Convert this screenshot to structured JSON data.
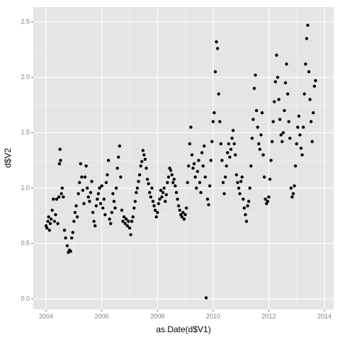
{
  "chart_data": {
    "type": "scatter",
    "xlabel": "as.Date(d$V1)",
    "ylabel": "d$V2",
    "xlim": [
      2003.54,
      2014.33
    ],
    "ylim": [
      -0.096,
      2.634
    ],
    "xticks": [
      2004,
      2006,
      2008,
      2010,
      2012,
      2014
    ],
    "yticks": [
      {
        "value": 0,
        "label": "0.0"
      },
      0.5,
      {
        "value": 1,
        "label": "1.0"
      },
      1.5,
      {
        "value": 2,
        "label": "2.0"
      },
      2.5
    ],
    "grid": true,
    "color": "#000000",
    "x": [
      2004.0,
      2004.03,
      2004.06,
      2004.09,
      2004.12,
      2004.15,
      2004.18,
      2004.22,
      2004.26,
      2004.3,
      2004.34,
      2004.38,
      2004.42,
      2004.46,
      2004.48,
      2004.5,
      2004.52,
      2004.55,
      2004.58,
      2004.62,
      2004.66,
      2004.7,
      2004.76,
      2004.8,
      2004.84,
      2004.88,
      2004.92,
      2004.96,
      2005.0,
      2005.04,
      2005.08,
      2005.12,
      2005.16,
      2005.2,
      2005.24,
      2005.28,
      2005.32,
      2005.36,
      2005.4,
      2005.44,
      2005.48,
      2005.52,
      2005.56,
      2005.6,
      2005.64,
      2005.68,
      2005.72,
      2005.76,
      2005.8,
      2005.84,
      2005.88,
      2005.92,
      2005.96,
      2006.0,
      2006.04,
      2006.08,
      2006.12,
      2006.16,
      2006.2,
      2006.24,
      2006.28,
      2006.32,
      2006.36,
      2006.4,
      2006.44,
      2006.48,
      2006.52,
      2006.56,
      2006.6,
      2006.64,
      2006.68,
      2006.72,
      2006.76,
      2006.8,
      2006.84,
      2006.88,
      2006.92,
      2006.96,
      2007.0,
      2007.04,
      2007.08,
      2007.12,
      2007.16,
      2007.2,
      2007.24,
      2007.28,
      2007.32,
      2007.36,
      2007.4,
      2007.44,
      2007.48,
      2007.52,
      2007.56,
      2007.6,
      2007.64,
      2007.68,
      2007.72,
      2007.76,
      2007.8,
      2007.84,
      2007.88,
      2007.92,
      2007.96,
      2008.0,
      2008.04,
      2008.08,
      2008.12,
      2008.16,
      2008.2,
      2008.24,
      2008.28,
      2008.32,
      2008.36,
      2008.4,
      2008.44,
      2008.48,
      2008.52,
      2008.56,
      2008.6,
      2008.64,
      2008.68,
      2008.72,
      2008.76,
      2008.8,
      2008.84,
      2008.88,
      2008.92,
      2008.96,
      2009.0,
      2009.04,
      2009.08,
      2009.12,
      2009.16,
      2009.2,
      2009.24,
      2009.28,
      2009.32,
      2009.36,
      2009.4,
      2009.44,
      2009.48,
      2009.52,
      2009.56,
      2009.6,
      2009.64,
      2009.68,
      2009.72,
      2009.75,
      2009.8,
      2009.84,
      2009.88,
      2009.92,
      2009.96,
      2010.0,
      2010.04,
      2010.08,
      2010.12,
      2010.16,
      2010.2,
      2010.24,
      2010.28,
      2010.32,
      2010.36,
      2010.4,
      2010.44,
      2010.48,
      2010.52,
      2010.56,
      2010.6,
      2010.64,
      2010.68,
      2010.72,
      2010.76,
      2010.8,
      2010.84,
      2010.88,
      2010.92,
      2010.96,
      2011.0,
      2011.04,
      2011.08,
      2011.12,
      2011.16,
      2011.2,
      2011.24,
      2011.28,
      2011.32,
      2011.36,
      2011.4,
      2011.44,
      2011.48,
      2011.52,
      2011.56,
      2011.6,
      2011.64,
      2011.68,
      2011.72,
      2011.76,
      2011.8,
      2011.84,
      2011.88,
      2011.92,
      2011.96,
      2012.0,
      2012.04,
      2012.08,
      2012.12,
      2012.16,
      2012.2,
      2012.24,
      2012.28,
      2012.32,
      2012.36,
      2012.4,
      2012.44,
      2012.48,
      2012.52,
      2012.56,
      2012.6,
      2012.64,
      2012.68,
      2012.72,
      2012.76,
      2012.8,
      2012.84,
      2012.88,
      2012.92,
      2012.96,
      2013.0,
      2013.04,
      2013.08,
      2013.12,
      2013.16,
      2013.2,
      2013.24,
      2013.28,
      2013.32,
      2013.36,
      2013.4,
      2013.44,
      2013.48,
      2013.52,
      2013.56,
      2013.6,
      2013.64,
      2013.68
    ],
    "values": [
      0.66,
      0.64,
      0.7,
      0.74,
      0.62,
      0.68,
      0.72,
      0.8,
      0.9,
      0.7,
      0.76,
      0.9,
      0.68,
      0.92,
      1.22,
      1.35,
      1.25,
      0.95,
      1.0,
      0.92,
      0.62,
      0.55,
      0.48,
      0.42,
      0.44,
      0.43,
      0.55,
      0.6,
      0.7,
      0.78,
      0.84,
      0.74,
      0.95,
      1.05,
      1.22,
      1.1,
      0.98,
      0.86,
      1.1,
      1.2,
      1.0,
      0.92,
      0.88,
      0.96,
      1.06,
      0.78,
      0.7,
      0.66,
      0.84,
      0.9,
      0.95,
      1.0,
      0.86,
      1.02,
      0.82,
      0.9,
      0.76,
      1.05,
      1.12,
      1.25,
      0.72,
      0.68,
      0.78,
      0.95,
      0.88,
      0.82,
      1.0,
      1.18,
      1.28,
      1.38,
      1.1,
      0.8,
      0.7,
      0.74,
      0.68,
      0.72,
      0.66,
      0.7,
      0.64,
      0.58,
      0.7,
      0.74,
      0.82,
      0.88,
      0.96,
      1.0,
      1.06,
      1.12,
      1.2,
      1.24,
      1.34,
      1.3,
      1.26,
      1.18,
      1.08,
      1.04,
      0.96,
      0.92,
      1.0,
      0.88,
      0.84,
      0.8,
      0.74,
      0.78,
      0.86,
      0.9,
      0.98,
      0.92,
      0.96,
      1.0,
      0.88,
      0.94,
      1.05,
      1.1,
      1.18,
      1.16,
      1.12,
      1.05,
      1.08,
      1.02,
      0.96,
      0.9,
      0.84,
      0.8,
      0.76,
      0.74,
      0.78,
      0.72,
      0.76,
      0.82,
      1.05,
      1.2,
      1.4,
      1.55,
      1.3,
      1.18,
      1.22,
      1.1,
      1.0,
      1.15,
      1.25,
      1.05,
      0.96,
      1.32,
      1.2,
      1.38,
      1.1,
      0.01,
      0.9,
      0.85,
      1.02,
      1.25,
      1.42,
      1.6,
      1.68,
      2.05,
      2.32,
      2.26,
      1.85,
      1.6,
      1.4,
      1.25,
      1.05,
      0.95,
      1.1,
      1.2,
      1.32,
      1.4,
      1.28,
      1.35,
      1.45,
      1.52,
      1.4,
      1.3,
      1.12,
      1.05,
      1.0,
      0.95,
      1.06,
      1.1,
      0.9,
      0.82,
      0.76,
      0.7,
      0.84,
      0.88,
      1.0,
      1.2,
      1.45,
      1.62,
      1.9,
      2.02,
      1.7,
      1.55,
      1.4,
      1.35,
      1.48,
      1.68,
      1.3,
      1.1,
      0.9,
      0.86,
      0.88,
      0.92,
      1.08,
      1.25,
      1.42,
      1.6,
      1.78,
      1.96,
      2.2,
      2.0,
      1.8,
      1.62,
      1.48,
      1.42,
      1.5,
      1.7,
      1.95,
      2.12,
      1.85,
      1.6,
      1.45,
      1.0,
      0.92,
      0.95,
      1.02,
      1.2,
      1.4,
      1.55,
      1.65,
      1.48,
      1.36,
      1.3,
      1.55,
      1.85,
      2.12,
      2.35,
      2.47,
      2.05,
      1.8,
      1.6,
      1.42,
      1.68,
      1.92,
      1.97
    ]
  }
}
